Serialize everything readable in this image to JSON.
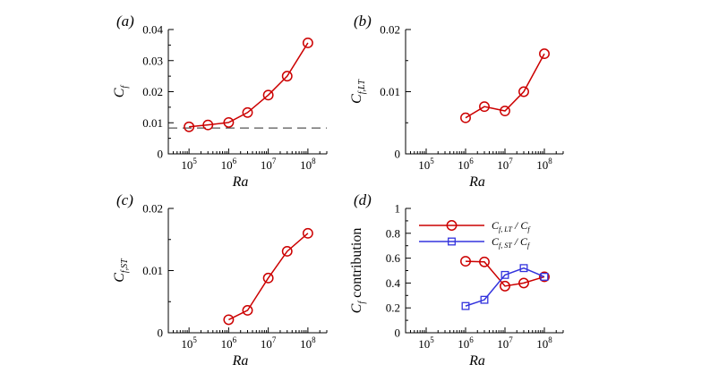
{
  "figure": {
    "x_tick_base": "10",
    "x_tick_exponents": [
      "5",
      "6",
      "7",
      "8"
    ]
  },
  "chart_data": [
    {
      "type": "line",
      "panel_label": "(a)",
      "xlabel": "Ra",
      "ylabel": "C",
      "ylabel_sub": "f",
      "xscale": "log",
      "xlim": [
        30000,
        300000000
      ],
      "ylim": [
        0,
        0.04
      ],
      "yticks": [
        "0",
        "0.01",
        "0.02",
        "0.03",
        "0.04"
      ],
      "series": [
        {
          "color": "#cc0000",
          "marker": "circle",
          "x": [
            100000,
            300000,
            1000000,
            3000000,
            10000000,
            30000000,
            100000000
          ],
          "y": [
            0.0087,
            0.0093,
            0.0101,
            0.0133,
            0.0189,
            0.025,
            0.0357
          ]
        }
      ],
      "hline": {
        "y": 0.0083,
        "style": "dashed",
        "color": "#555555"
      }
    },
    {
      "type": "line",
      "panel_label": "(b)",
      "xlabel": "Ra",
      "ylabel": "C",
      "ylabel_sub": "f,LT",
      "xscale": "log",
      "xlim": [
        30000,
        300000000
      ],
      "ylim": [
        0,
        0.02
      ],
      "yticks": [
        "0",
        "0.01",
        "0.02"
      ],
      "series": [
        {
          "color": "#cc0000",
          "marker": "circle",
          "x": [
            1000000,
            3000000,
            10000000,
            30000000,
            100000000
          ],
          "y": [
            0.0058,
            0.0076,
            0.0069,
            0.01,
            0.0161
          ]
        }
      ]
    },
    {
      "type": "line",
      "panel_label": "(c)",
      "xlabel": "Ra",
      "ylabel": "C",
      "ylabel_sub": "f,ST",
      "xscale": "log",
      "xlim": [
        30000,
        300000000
      ],
      "ylim": [
        0,
        0.02
      ],
      "yticks": [
        "0",
        "0.01",
        "0.02"
      ],
      "series": [
        {
          "color": "#cc0000",
          "marker": "circle",
          "x": [
            1000000,
            3000000,
            10000000,
            30000000,
            100000000
          ],
          "y": [
            0.0021,
            0.0036,
            0.0088,
            0.0131,
            0.016
          ]
        }
      ]
    },
    {
      "type": "line",
      "panel_label": "(d)",
      "xlabel": "Ra",
      "ylabel": "C",
      "ylabel_sub": "f",
      "ylabel_suffix": " contribution",
      "xscale": "log",
      "xlim": [
        30000,
        300000000
      ],
      "ylim": [
        0,
        1
      ],
      "yticks": [
        "0",
        "0.2",
        "0.4",
        "0.6",
        "0.8",
        "1"
      ],
      "legend_position": "top-right",
      "series": [
        {
          "name_main": "C",
          "name_sub": "f, LT",
          "name_tail": " / C",
          "name_tail_sub": "f",
          "color": "#cc0000",
          "marker": "circle",
          "x": [
            1000000,
            3000000,
            10000000,
            30000000,
            100000000
          ],
          "y": [
            0.575,
            0.57,
            0.375,
            0.4,
            0.45
          ]
        },
        {
          "name_main": "C",
          "name_sub": "f, ST",
          "name_tail": " / C",
          "name_tail_sub": "f",
          "color": "#3333dd",
          "marker": "square",
          "x": [
            1000000,
            3000000,
            10000000,
            30000000,
            100000000
          ],
          "y": [
            0.215,
            0.265,
            0.465,
            0.52,
            0.45
          ]
        }
      ]
    }
  ]
}
